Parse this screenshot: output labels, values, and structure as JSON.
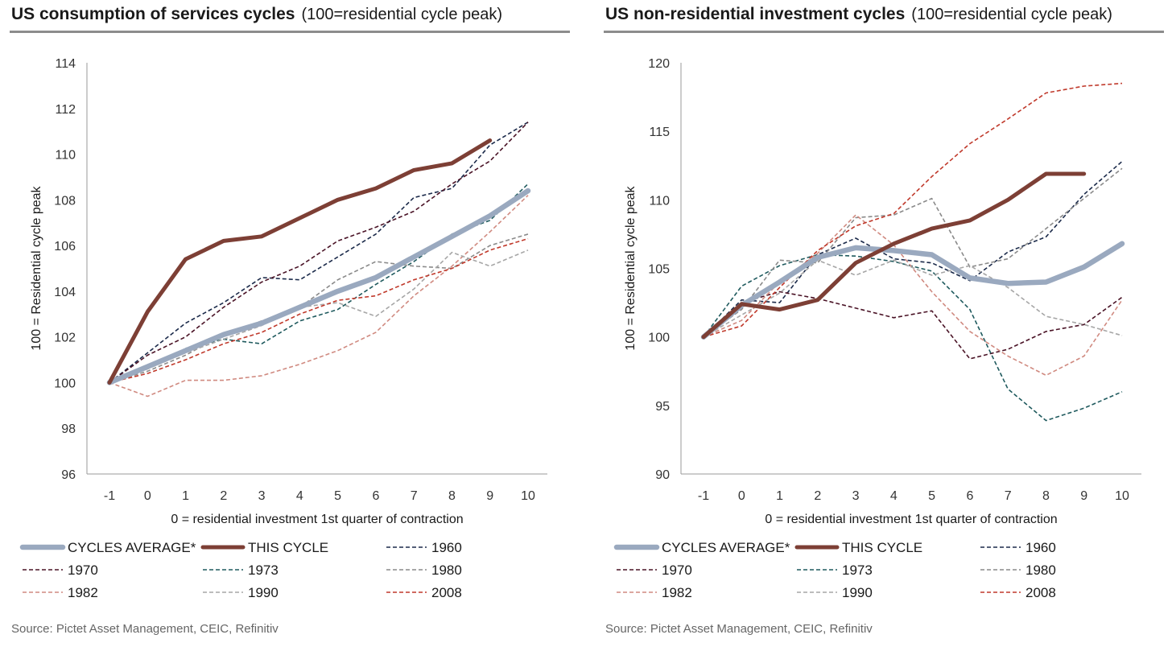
{
  "chart_data": [
    {
      "type": "line",
      "title": "US consumption of services cycles",
      "subtitle": "(100=residential cycle peak)",
      "xlabel": "0 = residential investment 1st quarter of contraction",
      "ylabel": "100 = Residential cycle peak",
      "x": [
        -1,
        0,
        1,
        2,
        3,
        4,
        5,
        6,
        7,
        8,
        9,
        10
      ],
      "ylim": [
        96,
        114
      ],
      "yticks": [
        96,
        98,
        100,
        102,
        104,
        106,
        108,
        110,
        112,
        114
      ],
      "grid": false,
      "legend_position": "bottom",
      "series": [
        {
          "name": "CYCLES AVERAGE*",
          "color": "#9aa9bf",
          "style": "solid-thick",
          "values": [
            100.0,
            100.7,
            101.4,
            102.1,
            102.6,
            103.3,
            104.0,
            104.6,
            105.5,
            106.4,
            107.3,
            108.4
          ]
        },
        {
          "name": "THIS CYCLE",
          "color": "#7d3f35",
          "style": "solid-heavy",
          "values": [
            100.0,
            103.1,
            105.4,
            106.2,
            106.4,
            107.2,
            108.0,
            108.5,
            109.3,
            109.6,
            110.6,
            null
          ]
        },
        {
          "name": "1960",
          "color": "#1b2a4a",
          "style": "dashed",
          "values": [
            100.0,
            101.3,
            102.6,
            103.5,
            104.6,
            104.5,
            105.5,
            106.5,
            108.1,
            108.5,
            110.4,
            111.4
          ]
        },
        {
          "name": "1970",
          "color": "#4a1326",
          "style": "dashed",
          "values": [
            100.0,
            101.2,
            102.0,
            103.3,
            104.4,
            105.1,
            106.2,
            106.8,
            107.5,
            108.7,
            109.7,
            111.4
          ]
        },
        {
          "name": "1973",
          "color": "#1f5a5e",
          "style": "dashed",
          "values": [
            100.0,
            100.6,
            101.5,
            101.9,
            101.7,
            102.7,
            103.2,
            104.3,
            105.3,
            106.5,
            107.1,
            108.7
          ]
        },
        {
          "name": "1980",
          "color": "#8a8a8a",
          "style": "dashed",
          "values": [
            100.0,
            100.5,
            101.2,
            102.1,
            102.7,
            103.3,
            104.5,
            105.3,
            105.1,
            105.0,
            106.0,
            106.5
          ]
        },
        {
          "name": "1982",
          "color": "#d08a80",
          "style": "dashed",
          "values": [
            100.0,
            99.4,
            100.1,
            100.1,
            100.3,
            100.8,
            101.4,
            102.2,
            103.8,
            105.1,
            106.6,
            108.2
          ]
        },
        {
          "name": "1990",
          "color": "#a6a6a6",
          "style": "dashed",
          "values": [
            100.0,
            100.6,
            101.3,
            101.9,
            102.5,
            103.3,
            103.5,
            102.9,
            104.1,
            105.7,
            105.1,
            105.8
          ]
        },
        {
          "name": "2008",
          "color": "#c0392b",
          "style": "dashed",
          "values": [
            100.0,
            100.4,
            101.0,
            101.7,
            102.2,
            103.0,
            103.6,
            103.8,
            104.5,
            105.0,
            105.8,
            106.3
          ]
        }
      ]
    },
    {
      "type": "line",
      "title": "US non-residential investment cycles",
      "subtitle": "(100=residential cycle peak)",
      "xlabel": "0 = residential investment 1st quarter of contraction",
      "ylabel": "100 = Residential cycle peak",
      "x": [
        -1,
        0,
        1,
        2,
        3,
        4,
        5,
        6,
        7,
        8,
        9,
        10
      ],
      "ylim": [
        90,
        120
      ],
      "yticks": [
        90,
        95,
        100,
        105,
        110,
        115,
        120
      ],
      "grid": false,
      "legend_position": "bottom",
      "series": [
        {
          "name": "CYCLES AVERAGE*",
          "color": "#9aa9bf",
          "style": "solid-thick",
          "values": [
            100.0,
            102.3,
            104.0,
            105.8,
            106.5,
            106.3,
            106.0,
            104.3,
            103.9,
            104.0,
            105.1,
            106.8
          ]
        },
        {
          "name": "THIS CYCLE",
          "color": "#7d3f35",
          "style": "solid-heavy",
          "values": [
            100.0,
            102.4,
            102.0,
            102.7,
            105.4,
            106.8,
            107.9,
            108.5,
            110.0,
            111.9,
            111.9,
            null
          ]
        },
        {
          "name": "1960",
          "color": "#1b2a4a",
          "style": "dashed",
          "values": [
            100.0,
            102.7,
            102.5,
            106.0,
            107.2,
            105.7,
            105.4,
            104.1,
            106.2,
            107.3,
            110.4,
            112.8
          ]
        },
        {
          "name": "1970",
          "color": "#4a1326",
          "style": "dashed",
          "values": [
            100.0,
            102.5,
            103.3,
            102.8,
            102.1,
            101.4,
            101.9,
            98.4,
            99.1,
            100.4,
            100.9,
            102.9
          ]
        },
        {
          "name": "1973",
          "color": "#1f5a5e",
          "style": "dashed",
          "values": [
            100.0,
            103.7,
            105.2,
            106.0,
            105.9,
            105.5,
            104.8,
            102.0,
            96.2,
            93.9,
            94.8,
            96.0
          ]
        },
        {
          "name": "1980",
          "color": "#8a8a8a",
          "style": "dashed",
          "values": [
            100.0,
            102.0,
            105.6,
            105.4,
            108.7,
            108.9,
            110.1,
            105.1,
            105.7,
            107.9,
            110.1,
            112.3
          ]
        },
        {
          "name": "1982",
          "color": "#d08a80",
          "style": "dashed",
          "values": [
            100.0,
            101.2,
            104.0,
            106.1,
            108.9,
            106.7,
            103.3,
            100.4,
            98.6,
            97.2,
            98.6,
            102.7
          ]
        },
        {
          "name": "1990",
          "color": "#a6a6a6",
          "style": "dashed",
          "values": [
            100.0,
            101.6,
            103.2,
            105.6,
            104.5,
            105.6,
            104.5,
            105.2,
            103.6,
            101.5,
            100.9,
            100.1
          ]
        },
        {
          "name": "2008",
          "color": "#c0392b",
          "style": "dashed",
          "values": [
            100.0,
            100.8,
            103.6,
            106.3,
            108.1,
            109.0,
            111.7,
            114.1,
            115.9,
            117.8,
            118.3,
            118.5
          ]
        }
      ]
    }
  ],
  "source_note": "Source: Pictet Asset Management, CEIC, Refinitiv"
}
